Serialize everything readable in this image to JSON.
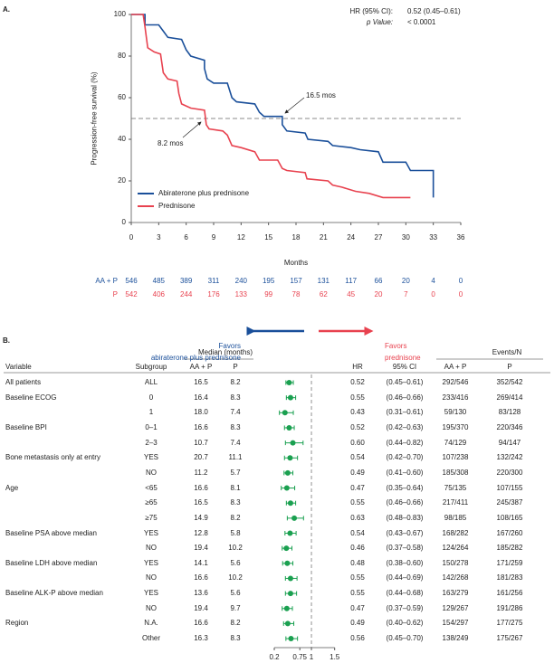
{
  "panel_a": {
    "label": "A.",
    "hr_label": "HR (95% CI):",
    "hr_value": "0.52 (0.45–0.61)",
    "p_label": "p Value:",
    "p_value": "< 0.0001",
    "annot_aa": "16.5 mos",
    "annot_p": "8.2 mos"
  },
  "panel_b": {
    "label": "B.",
    "favors_left_1": "Favors",
    "favors_left_2": "abiraterone plus prednisone",
    "favors_right_1": "Favors",
    "favors_right_2": "prednisone",
    "hdr_median": "Median (months)",
    "hdr_events": "Events/N",
    "hdr_variable": "Variable",
    "hdr_subgroup": "Subgroup",
    "hdr_aap": "AA + P",
    "hdr_p": "P",
    "hdr_hr": "HR",
    "hdr_ci": "95% CI",
    "hdr_ev_aap": "AA + P",
    "hdr_ev_p": "P"
  },
  "colors": {
    "aap": "#1a4f9a",
    "p": "#e8424f",
    "forest": "#1aa050"
  },
  "chart_data": [
    {
      "type": "line",
      "title": "",
      "xlabel": "Months",
      "ylabel": "Progression-free survival (%)",
      "xlim": [
        0,
        36
      ],
      "ylim": [
        0,
        100
      ],
      "xticks": [
        "0",
        "3",
        "6",
        "9",
        "12",
        "15",
        "18",
        "21",
        "24",
        "27",
        "30",
        "33",
        "36"
      ],
      "yticks": [
        "0",
        "20",
        "40",
        "60",
        "80",
        "100"
      ],
      "legend": "bottom-left",
      "reference_line": 50,
      "series": [
        {
          "name": "Abiraterone plus prednisone",
          "color": "#1a4f9a",
          "points": [
            [
              0,
              100
            ],
            [
              1.5,
              100
            ],
            [
              1.5,
              95
            ],
            [
              3,
              95
            ],
            [
              3.5,
              92
            ],
            [
              4,
              89
            ],
            [
              5.5,
              88
            ],
            [
              6,
              83
            ],
            [
              6.5,
              80
            ],
            [
              8,
              78
            ],
            [
              8,
              74
            ],
            [
              8.3,
              69
            ],
            [
              9,
              67
            ],
            [
              10.5,
              67
            ],
            [
              11,
              60
            ],
            [
              11.5,
              58
            ],
            [
              13.5,
              57
            ],
            [
              14,
              53
            ],
            [
              14.5,
              51
            ],
            [
              16.5,
              51
            ],
            [
              16.5,
              47
            ],
            [
              17,
              44
            ],
            [
              19,
              43
            ],
            [
              19.3,
              40
            ],
            [
              21.5,
              39
            ],
            [
              22,
              37
            ],
            [
              24,
              36
            ],
            [
              25,
              35
            ],
            [
              27,
              34
            ],
            [
              27.5,
              29
            ],
            [
              30,
              29
            ],
            [
              30.5,
              25
            ],
            [
              33,
              25
            ],
            [
              33,
              12
            ]
          ]
        },
        {
          "name": "Prednisone",
          "color": "#e8424f",
          "points": [
            [
              0,
              100
            ],
            [
              1.3,
              100
            ],
            [
              1.5,
              94
            ],
            [
              1.8,
              84
            ],
            [
              2.5,
              82
            ],
            [
              3.2,
              81
            ],
            [
              3.5,
              72
            ],
            [
              4,
              69
            ],
            [
              5,
              68
            ],
            [
              5.2,
              62
            ],
            [
              5.5,
              57
            ],
            [
              6.5,
              55
            ],
            [
              8,
              54
            ],
            [
              8.2,
              47
            ],
            [
              8.5,
              45
            ],
            [
              10,
              44
            ],
            [
              10.5,
              42
            ],
            [
              11,
              37
            ],
            [
              12,
              36
            ],
            [
              13.5,
              34
            ],
            [
              14,
              30
            ],
            [
              16,
              30
            ],
            [
              16.5,
              26
            ],
            [
              17,
              25
            ],
            [
              19,
              24
            ],
            [
              19.2,
              21
            ],
            [
              21.5,
              20
            ],
            [
              22,
              18
            ],
            [
              23,
              17
            ],
            [
              24.5,
              15
            ],
            [
              26,
              14
            ],
            [
              27.5,
              12
            ],
            [
              30.5,
              12
            ]
          ]
        }
      ],
      "at_risk": [
        {
          "label": "AA + P",
          "values": [
            "546",
            "485",
            "389",
            "311",
            "240",
            "195",
            "157",
            "131",
            "117",
            "66",
            "20",
            "4",
            "0"
          ]
        },
        {
          "label": "P",
          "values": [
            "542",
            "406",
            "244",
            "176",
            "133",
            "99",
            "78",
            "62",
            "45",
            "20",
            "7",
            "0",
            "0"
          ]
        }
      ]
    },
    {
      "type": "forest",
      "xlim": [
        0.2,
        1.5
      ],
      "xticks": [
        "0.2",
        "0.75",
        "1",
        "1.5"
      ],
      "reference_line": 1,
      "rows": [
        {
          "variable": "All patients",
          "subgroup": "ALL",
          "med_aap": "16.5",
          "med_p": "8.2",
          "hr": 0.52,
          "hr_text": "0.52",
          "lo": 0.45,
          "hi": 0.61,
          "ci": "(0.45–0.61)",
          "ev_aap": "292/546",
          "ev_p": "352/542"
        },
        {
          "variable": "Baseline ECOG",
          "subgroup": "0",
          "med_aap": "16.4",
          "med_p": "8.3",
          "hr": 0.55,
          "hr_text": "0.55",
          "lo": 0.46,
          "hi": 0.66,
          "ci": "(0.46–0.66)",
          "ev_aap": "233/416",
          "ev_p": "269/414"
        },
        {
          "variable": "",
          "subgroup": "1",
          "med_aap": "18.0",
          "med_p": "7.4",
          "hr": 0.43,
          "hr_text": "0.43",
          "lo": 0.31,
          "hi": 0.61,
          "ci": "(0.31–0.61)",
          "ev_aap": "59/130",
          "ev_p": "83/128"
        },
        {
          "variable": "Baseline BPI",
          "subgroup": "0–1",
          "med_aap": "16.6",
          "med_p": "8.3",
          "hr": 0.52,
          "hr_text": "0.52",
          "lo": 0.42,
          "hi": 0.63,
          "ci": "(0.42–0.63)",
          "ev_aap": "195/370",
          "ev_p": "220/346"
        },
        {
          "variable": "",
          "subgroup": "2–3",
          "med_aap": "10.7",
          "med_p": "7.4",
          "hr": 0.6,
          "hr_text": "0.60",
          "lo": 0.44,
          "hi": 0.82,
          "ci": "(0.44–0.82)",
          "ev_aap": "74/129",
          "ev_p": "94/147"
        },
        {
          "variable": "Bone metastasis only at entry",
          "subgroup": "YES",
          "med_aap": "20.7",
          "med_p": "11.1",
          "hr": 0.54,
          "hr_text": "0.54",
          "lo": 0.42,
          "hi": 0.7,
          "ci": "(0.42–0.70)",
          "ev_aap": "107/238",
          "ev_p": "132/242"
        },
        {
          "variable": "",
          "subgroup": "NO",
          "med_aap": "11.2",
          "med_p": "5.7",
          "hr": 0.49,
          "hr_text": "0.49",
          "lo": 0.41,
          "hi": 0.6,
          "ci": "(0.41–0.60)",
          "ev_aap": "185/308",
          "ev_p": "220/300"
        },
        {
          "variable": "Age",
          "subgroup": "<65",
          "med_aap": "16.6",
          "med_p": "8.1",
          "hr": 0.47,
          "hr_text": "0.47",
          "lo": 0.35,
          "hi": 0.64,
          "ci": "(0.35–0.64)",
          "ev_aap": "75/135",
          "ev_p": "107/155"
        },
        {
          "variable": "",
          "subgroup": "≥65",
          "med_aap": "16.5",
          "med_p": "8.3",
          "hr": 0.55,
          "hr_text": "0.55",
          "lo": 0.46,
          "hi": 0.66,
          "ci": "(0.46–0.66)",
          "ev_aap": "217/411",
          "ev_p": "245/387"
        },
        {
          "variable": "",
          "subgroup": "≥75",
          "med_aap": "14.9",
          "med_p": "8.2",
          "hr": 0.63,
          "hr_text": "0.63",
          "lo": 0.48,
          "hi": 0.83,
          "ci": "(0.48–0.83)",
          "ev_aap": "98/185",
          "ev_p": "108/165"
        },
        {
          "variable": "Baseline PSA above median",
          "subgroup": "YES",
          "med_aap": "12.8",
          "med_p": "5.8",
          "hr": 0.54,
          "hr_text": "0.54",
          "lo": 0.43,
          "hi": 0.67,
          "ci": "(0.43–0.67)",
          "ev_aap": "168/282",
          "ev_p": "167/260"
        },
        {
          "variable": "",
          "subgroup": "NO",
          "med_aap": "19.4",
          "med_p": "10.2",
          "hr": 0.46,
          "hr_text": "0.46",
          "lo": 0.37,
          "hi": 0.58,
          "ci": "(0.37–0.58)",
          "ev_aap": "124/264",
          "ev_p": "185/282"
        },
        {
          "variable": "Baseline LDH above median",
          "subgroup": "YES",
          "med_aap": "14.1",
          "med_p": "5.6",
          "hr": 0.48,
          "hr_text": "0.48",
          "lo": 0.38,
          "hi": 0.6,
          "ci": "(0.38–0.60)",
          "ev_aap": "150/278",
          "ev_p": "171/259"
        },
        {
          "variable": "",
          "subgroup": "NO",
          "med_aap": "16.6",
          "med_p": "10.2",
          "hr": 0.55,
          "hr_text": "0.55",
          "lo": 0.44,
          "hi": 0.69,
          "ci": "(0.44–0.69)",
          "ev_aap": "142/268",
          "ev_p": "181/283"
        },
        {
          "variable": "Baseline ALK-P above median",
          "subgroup": "YES",
          "med_aap": "13.6",
          "med_p": "5.6",
          "hr": 0.55,
          "hr_text": "0.55",
          "lo": 0.44,
          "hi": 0.68,
          "ci": "(0.44–0.68)",
          "ev_aap": "163/279",
          "ev_p": "161/256"
        },
        {
          "variable": "",
          "subgroup": "NO",
          "med_aap": "19.4",
          "med_p": "9.7",
          "hr": 0.47,
          "hr_text": "0.47",
          "lo": 0.37,
          "hi": 0.59,
          "ci": "(0.37–0.59)",
          "ev_aap": "129/267",
          "ev_p": "191/286"
        },
        {
          "variable": "Region",
          "subgroup": "N.A.",
          "med_aap": "16.6",
          "med_p": "8.2",
          "hr": 0.49,
          "hr_text": "0.49",
          "lo": 0.4,
          "hi": 0.62,
          "ci": "(0.40–0.62)",
          "ev_aap": "154/297",
          "ev_p": "177/275"
        },
        {
          "variable": "",
          "subgroup": "Other",
          "med_aap": "16.3",
          "med_p": "8.3",
          "hr": 0.56,
          "hr_text": "0.56",
          "lo": 0.45,
          "hi": 0.7,
          "ci": "(0.45–0.70)",
          "ev_aap": "138/249",
          "ev_p": "175/267"
        }
      ]
    }
  ]
}
